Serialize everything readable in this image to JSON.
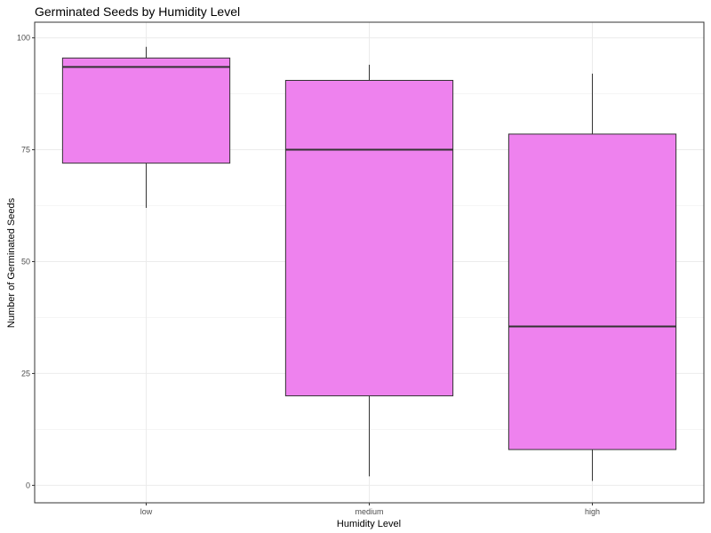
{
  "chart_data": {
    "type": "box",
    "title": "Germinated Seeds by Humidity Level",
    "xlabel": "Humidity Level",
    "ylabel": "Number of Germinated Seeds",
    "categories": [
      "low",
      "medium",
      "high"
    ],
    "boxes": [
      {
        "category": "low",
        "min": 62,
        "q1": 72,
        "median": 93.5,
        "q3": 95.5,
        "max": 98
      },
      {
        "category": "medium",
        "min": 2,
        "q1": 20,
        "median": 75,
        "q3": 90.5,
        "max": 94
      },
      {
        "category": "high",
        "min": 1,
        "q1": 8,
        "median": 35.5,
        "q3": 78.5,
        "max": 92
      }
    ],
    "y_ticks": [
      0,
      25,
      50,
      75,
      100
    ],
    "y_tick_labels": [
      "0",
      "25",
      "50",
      "75",
      "100"
    ],
    "ylim": [
      -3.9,
      103.5
    ],
    "grid": true,
    "legend": "none",
    "colors": {
      "box_fill": "#EE82EE",
      "box_stroke": "#333333",
      "grid": "#ebebeb",
      "panel_border": "#333333"
    }
  }
}
